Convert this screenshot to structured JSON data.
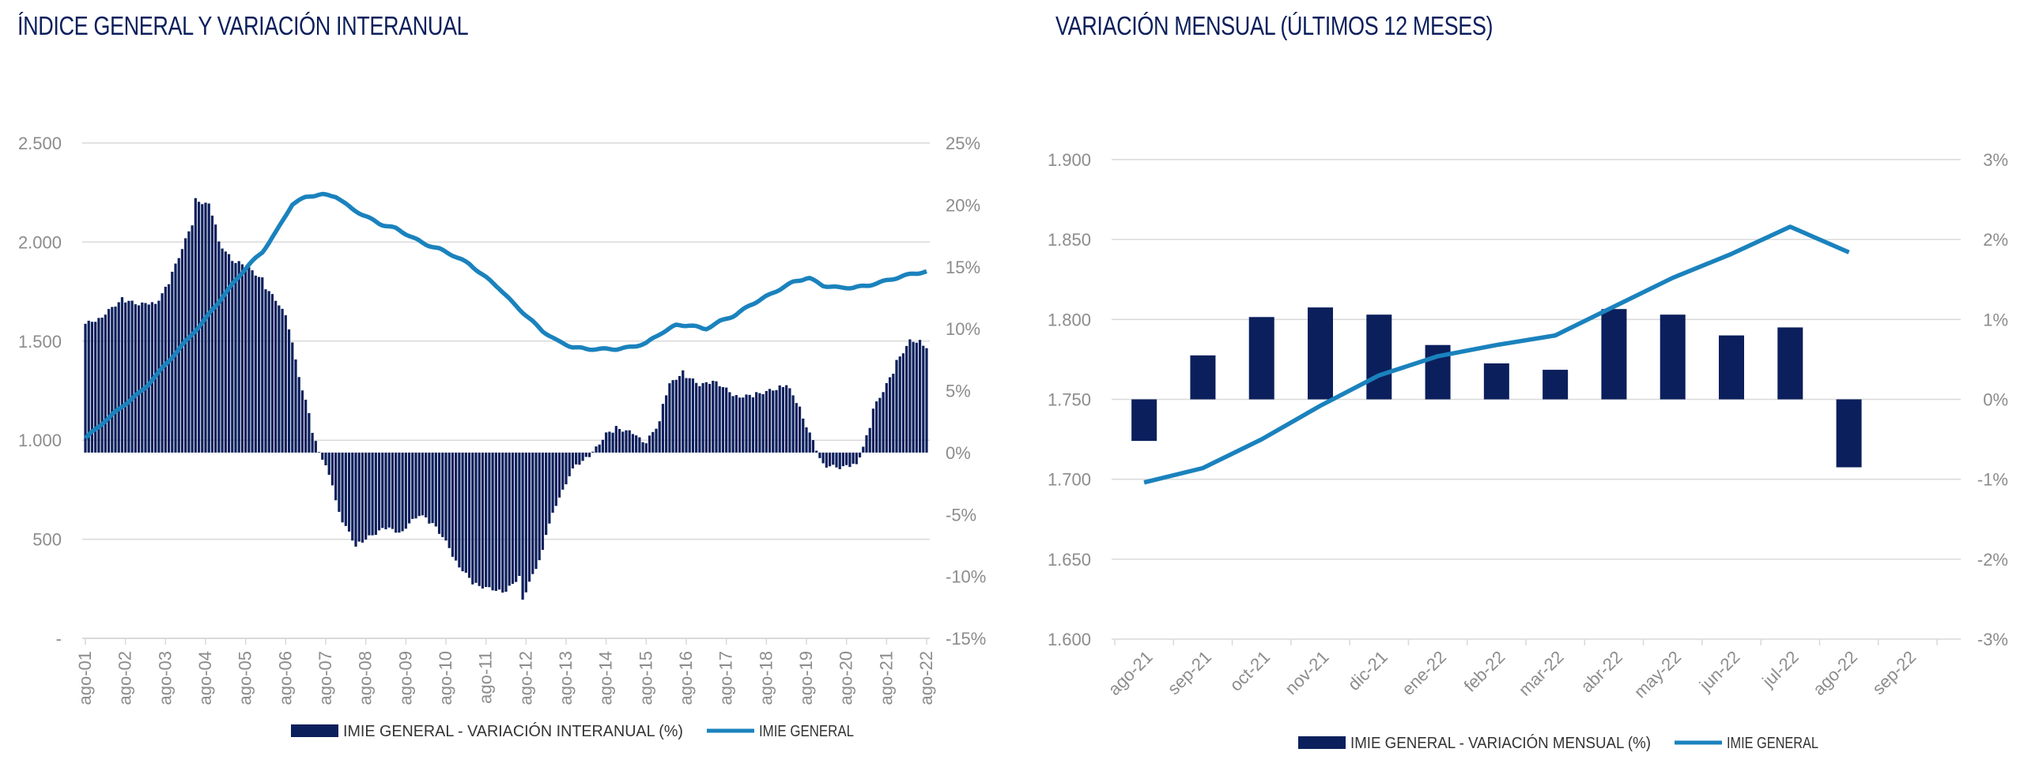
{
  "colors": {
    "bar": "#0b1f5c",
    "line": "#1a82bd",
    "grid": "#d9d9d9",
    "axis": "#8c8c8c"
  },
  "chart_data": [
    {
      "type": "bar+line",
      "title": "ÍNDICE GENERAL Y VARIACIÓN INTERANUAL",
      "left_axis": {
        "ticks": [
          "-",
          "500",
          "1.000",
          "1.500",
          "2.000",
          "2.500"
        ],
        "range": [
          0,
          2500
        ]
      },
      "right_axis": {
        "ticks": [
          "-15%",
          "-10%",
          "-5%",
          "0%",
          "5%",
          "10%",
          "15%",
          "20%",
          "25%"
        ],
        "range": [
          -15,
          25
        ]
      },
      "x_labels": [
        "ago-01",
        "ago-02",
        "ago-03",
        "ago-04",
        "ago-05",
        "ago-06",
        "ago-07",
        "ago-08",
        "ago-09",
        "ago-10",
        "ago-11",
        "ago-12",
        "ago-13",
        "ago-14",
        "ago-15",
        "ago-16",
        "ago-17",
        "ago-18",
        "ago-19",
        "ago-20",
        "ago-21",
        "ago-22"
      ],
      "series": [
        {
          "name": "IMIE GENERAL - VARIACIÓN INTERANUAL (%)",
          "kind": "bar",
          "axis": "right",
          "anchors": [
            [
              0,
              10.4
            ],
            [
              6,
              11.0
            ],
            [
              12,
              12.4
            ],
            [
              18,
              12.0
            ],
            [
              24,
              12.0
            ],
            [
              30,
              14.5
            ],
            [
              36,
              18.5
            ],
            [
              38,
              20.4
            ],
            [
              42,
              20.0
            ],
            [
              46,
              17.0
            ],
            [
              50,
              15.5
            ],
            [
              54,
              15.3
            ],
            [
              60,
              14.0
            ],
            [
              66,
              12.0
            ],
            [
              70,
              10.0
            ],
            [
              74,
              5.0
            ],
            [
              78,
              1.5
            ],
            [
              84,
              -2.5
            ],
            [
              88,
              -5.5
            ],
            [
              92,
              -7.5
            ],
            [
              96,
              -7.0
            ],
            [
              102,
              -6.0
            ],
            [
              108,
              -6.5
            ],
            [
              114,
              -5.0
            ],
            [
              120,
              -6.0
            ],
            [
              126,
              -8.5
            ],
            [
              132,
              -10.5
            ],
            [
              138,
              -11.0
            ],
            [
              144,
              -11.2
            ],
            [
              148,
              -10.0
            ],
            [
              150,
              -11.8
            ],
            [
              156,
              -8.0
            ],
            [
              162,
              -3.5
            ],
            [
              168,
              -1.0
            ],
            [
              174,
              0.0
            ],
            [
              178,
              1.5
            ],
            [
              182,
              2.0
            ],
            [
              188,
              1.5
            ],
            [
              192,
              0.8
            ],
            [
              196,
              2.5
            ],
            [
              200,
              5.5
            ],
            [
              204,
              6.5
            ],
            [
              210,
              5.5
            ],
            [
              216,
              5.7
            ],
            [
              222,
              4.5
            ],
            [
              228,
              4.6
            ],
            [
              234,
              5.0
            ],
            [
              240,
              5.5
            ],
            [
              246,
              2.8
            ],
            [
              252,
              -1.0
            ],
            [
              258,
              -1.2
            ],
            [
              264,
              -1.0
            ],
            [
              270,
              3.5
            ],
            [
              276,
              6.5
            ],
            [
              282,
              9.0
            ],
            [
              286,
              9.0
            ],
            [
              288,
              8.5
            ]
          ]
        },
        {
          "name": "IMIE GENERAL",
          "kind": "line",
          "axis": "left",
          "anchors": [
            [
              0,
              1010
            ],
            [
              12,
              1140
            ],
            [
              24,
              1260
            ],
            [
              36,
              1430
            ],
            [
              48,
              1600
            ],
            [
              60,
              1790
            ],
            [
              66,
              1880
            ],
            [
              72,
              1950
            ],
            [
              78,
              2060
            ],
            [
              84,
              2190
            ],
            [
              90,
              2230
            ],
            [
              96,
              2240
            ],
            [
              102,
              2230
            ],
            [
              108,
              2170
            ],
            [
              114,
              2130
            ],
            [
              120,
              2090
            ],
            [
              126,
              2070
            ],
            [
              132,
              2030
            ],
            [
              138,
              1990
            ],
            [
              144,
              1965
            ],
            [
              150,
              1930
            ],
            [
              156,
              1890
            ],
            [
              162,
              1830
            ],
            [
              168,
              1770
            ],
            [
              174,
              1690
            ],
            [
              180,
              1620
            ],
            [
              186,
              1550
            ],
            [
              192,
              1500
            ],
            [
              198,
              1470
            ],
            [
              204,
              1460
            ],
            [
              210,
              1460
            ],
            [
              216,
              1460
            ],
            [
              222,
              1470
            ],
            [
              228,
              1490
            ],
            [
              234,
              1540
            ],
            [
              240,
              1580
            ],
            [
              246,
              1580
            ],
            [
              252,
              1560
            ],
            [
              258,
              1600
            ],
            [
              264,
              1630
            ],
            [
              270,
              1680
            ],
            [
              276,
              1720
            ],
            [
              282,
              1760
            ],
            [
              288,
              1800
            ],
            [
              294,
              1820
            ],
            [
              300,
              1780
            ],
            [
              306,
              1770
            ],
            [
              312,
              1770
            ],
            [
              318,
              1780
            ],
            [
              324,
              1800
            ],
            [
              330,
              1820
            ],
            [
              336,
              1840
            ],
            [
              342,
              1850
            ]
          ]
        }
      ],
      "legend": [
        "IMIE GENERAL - VARIACIÓN INTERANUAL (%)",
        "IMIE GENERAL"
      ]
    },
    {
      "type": "bar+line",
      "title": "VARIACIÓN MENSUAL (ÚLTIMOS 12 MESES)",
      "categories": [
        "ago-21",
        "sep-21",
        "oct-21",
        "nov-21",
        "dic-21",
        "ene-22",
        "feb-22",
        "mar-22",
        "abr-22",
        "may-22",
        "jun-22",
        "jul-22",
        "ago-22",
        "sep-22"
      ],
      "left_axis": {
        "ticks": [
          "1.600",
          "1.650",
          "1.700",
          "1.750",
          "1.800",
          "1.850",
          "1.900"
        ],
        "range": [
          1600,
          1900
        ]
      },
      "right_axis": {
        "ticks": [
          "-3%",
          "-2%",
          "-1%",
          "0%",
          "1%",
          "2%",
          "3%"
        ],
        "range": [
          -3,
          3
        ]
      },
      "series": [
        {
          "name": "IMIE GENERAL - VARIACIÓN MENSUAL (%)",
          "kind": "bar",
          "axis": "right",
          "values": [
            -0.52,
            0.55,
            1.03,
            1.15,
            1.06,
            0.68,
            0.45,
            0.37,
            1.13,
            1.06,
            0.8,
            0.9,
            -0.85,
            null
          ]
        },
        {
          "name": "IMIE GENERAL",
          "kind": "line",
          "axis": "left",
          "values": [
            1698,
            1707,
            1725,
            1746,
            1765,
            1777,
            1784,
            1790,
            1808,
            1826,
            1841,
            1858,
            1842,
            null
          ]
        }
      ],
      "legend": [
        "IMIE GENERAL - VARIACIÓN MENSUAL (%)",
        "IMIE GENERAL"
      ]
    }
  ]
}
